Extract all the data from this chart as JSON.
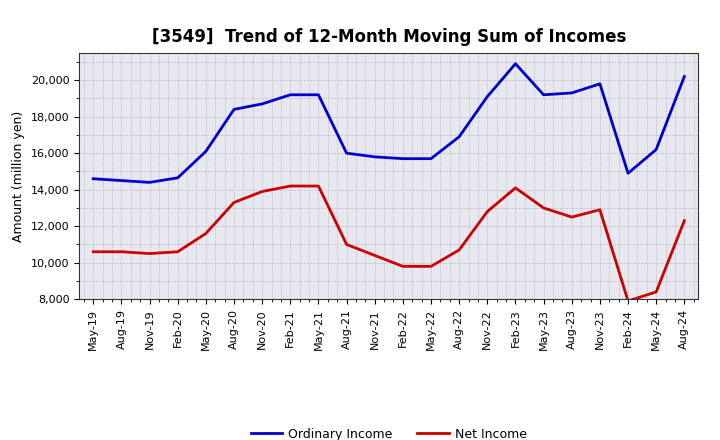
{
  "title": "[3549]  Trend of 12-Month Moving Sum of Incomes",
  "ylabel": "Amount (million yen)",
  "x_labels": [
    "May-19",
    "Aug-19",
    "Nov-19",
    "Feb-20",
    "May-20",
    "Aug-20",
    "Nov-20",
    "Feb-21",
    "May-21",
    "Aug-21",
    "Nov-21",
    "Feb-22",
    "May-22",
    "Aug-22",
    "Nov-22",
    "Feb-23",
    "May-23",
    "Aug-23",
    "Nov-23",
    "Feb-24",
    "May-24",
    "Aug-24"
  ],
  "ordinary_income": [
    14600,
    14500,
    14400,
    14650,
    16100,
    18400,
    18700,
    19200,
    19200,
    16000,
    15800,
    15700,
    15700,
    16900,
    19100,
    20900,
    19200,
    19300,
    19800,
    14900,
    16200,
    20200
  ],
  "net_income": [
    10600,
    10600,
    10500,
    10600,
    11600,
    13300,
    13900,
    14200,
    14200,
    11000,
    10400,
    9800,
    9800,
    10700,
    12800,
    14100,
    13000,
    12500,
    12900,
    7900,
    8400,
    12300
  ],
  "ordinary_color": "#0000cc",
  "net_color": "#cc0000",
  "ylim": [
    8000,
    21500
  ],
  "yticks": [
    8000,
    10000,
    12000,
    14000,
    16000,
    18000,
    20000
  ],
  "background_color": "#ffffff",
  "plot_bg_color": "#e8e8f0",
  "grid_color": "#888899",
  "title_fontsize": 12,
  "axis_label_fontsize": 9,
  "tick_fontsize": 8,
  "legend_fontsize": 9,
  "line_width": 2.0
}
